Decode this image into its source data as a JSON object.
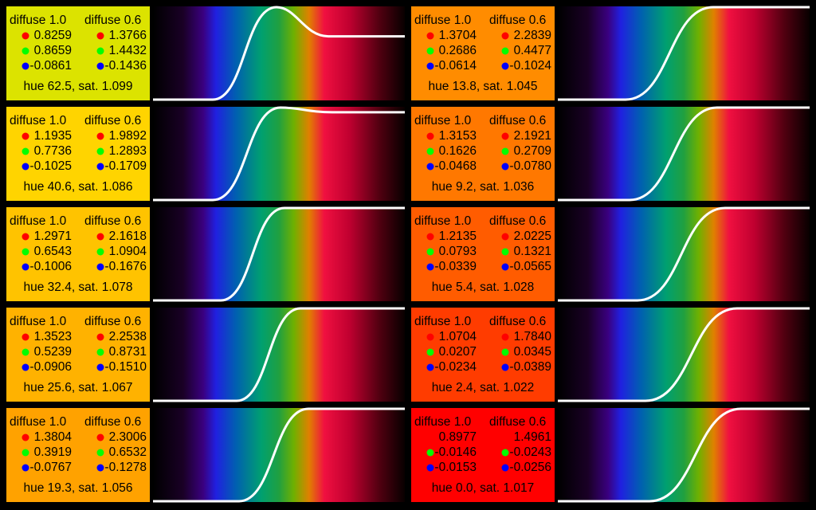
{
  "panels": [
    {
      "header1": "diffuse 1.0",
      "header2": "diffuse 0.6",
      "col1": [
        "0.8259",
        "0.8659",
        "-0.0861"
      ],
      "col2": [
        "1.3766",
        "1.4432",
        "-0.1436"
      ],
      "caption": "hue 62.5, sat. 1.099"
    },
    {
      "header1": "diffuse 1.0",
      "header2": "diffuse 0.6",
      "col1": [
        "1.1935",
        "0.7736",
        "-0.1025"
      ],
      "col2": [
        "1.9892",
        "1.2893",
        "-0.1709"
      ],
      "caption": "hue 40.6, sat. 1.086"
    },
    {
      "header1": "diffuse 1.0",
      "header2": "diffuse 0.6",
      "col1": [
        "1.2971",
        "0.6543",
        "-0.1006"
      ],
      "col2": [
        "2.1618",
        "1.0904",
        "-0.1676"
      ],
      "caption": "hue 32.4, sat. 1.078"
    },
    {
      "header1": "diffuse 1.0",
      "header2": "diffuse 0.6",
      "col1": [
        "1.3523",
        "0.5239",
        "-0.0906"
      ],
      "col2": [
        "2.2538",
        "0.8731",
        "-0.1510"
      ],
      "caption": "hue 25.6, sat. 1.067"
    },
    {
      "header1": "diffuse 1.0",
      "header2": "diffuse 0.6",
      "col1": [
        "1.3804",
        "0.3919",
        "-0.0767"
      ],
      "col2": [
        "2.3006",
        "0.6532",
        "-0.1278"
      ],
      "caption": "hue 19.3, sat. 1.056"
    },
    {
      "header1": "diffuse 1.0",
      "header2": "diffuse 0.6",
      "col1": [
        "1.3704",
        "0.2686",
        "-0.0614"
      ],
      "col2": [
        "2.2839",
        "0.4477",
        "-0.1024"
      ],
      "caption": "hue 13.8, sat. 1.045"
    },
    {
      "header1": "diffuse 1.0",
      "header2": "diffuse 0.6",
      "col1": [
        "1.3153",
        "0.1626",
        "-0.0468"
      ],
      "col2": [
        "2.1921",
        "0.2709",
        "-0.0780"
      ],
      "caption": "hue 9.2, sat. 1.036"
    },
    {
      "header1": "diffuse 1.0",
      "header2": "diffuse 0.6",
      "col1": [
        "1.2135",
        "0.0793",
        "-0.0339"
      ],
      "col2": [
        "2.0225",
        "0.1321",
        "-0.0565"
      ],
      "caption": "hue 5.4, sat. 1.028"
    },
    {
      "header1": "diffuse 1.0",
      "header2": "diffuse 0.6",
      "col1": [
        "1.0704",
        "0.0207",
        "-0.0234"
      ],
      "col2": [
        "1.7840",
        "0.0345",
        "-0.0389"
      ],
      "caption": "hue 2.4, sat. 1.022"
    },
    {
      "header1": "diffuse 1.0",
      "header2": "diffuse 0.6",
      "col1": [
        "0.8977",
        "-0.0146",
        "-0.0153"
      ],
      "col2": [
        "1.4961",
        "-0.0243",
        "-0.0256"
      ],
      "caption": "hue 0.0, sat. 1.017"
    }
  ]
}
